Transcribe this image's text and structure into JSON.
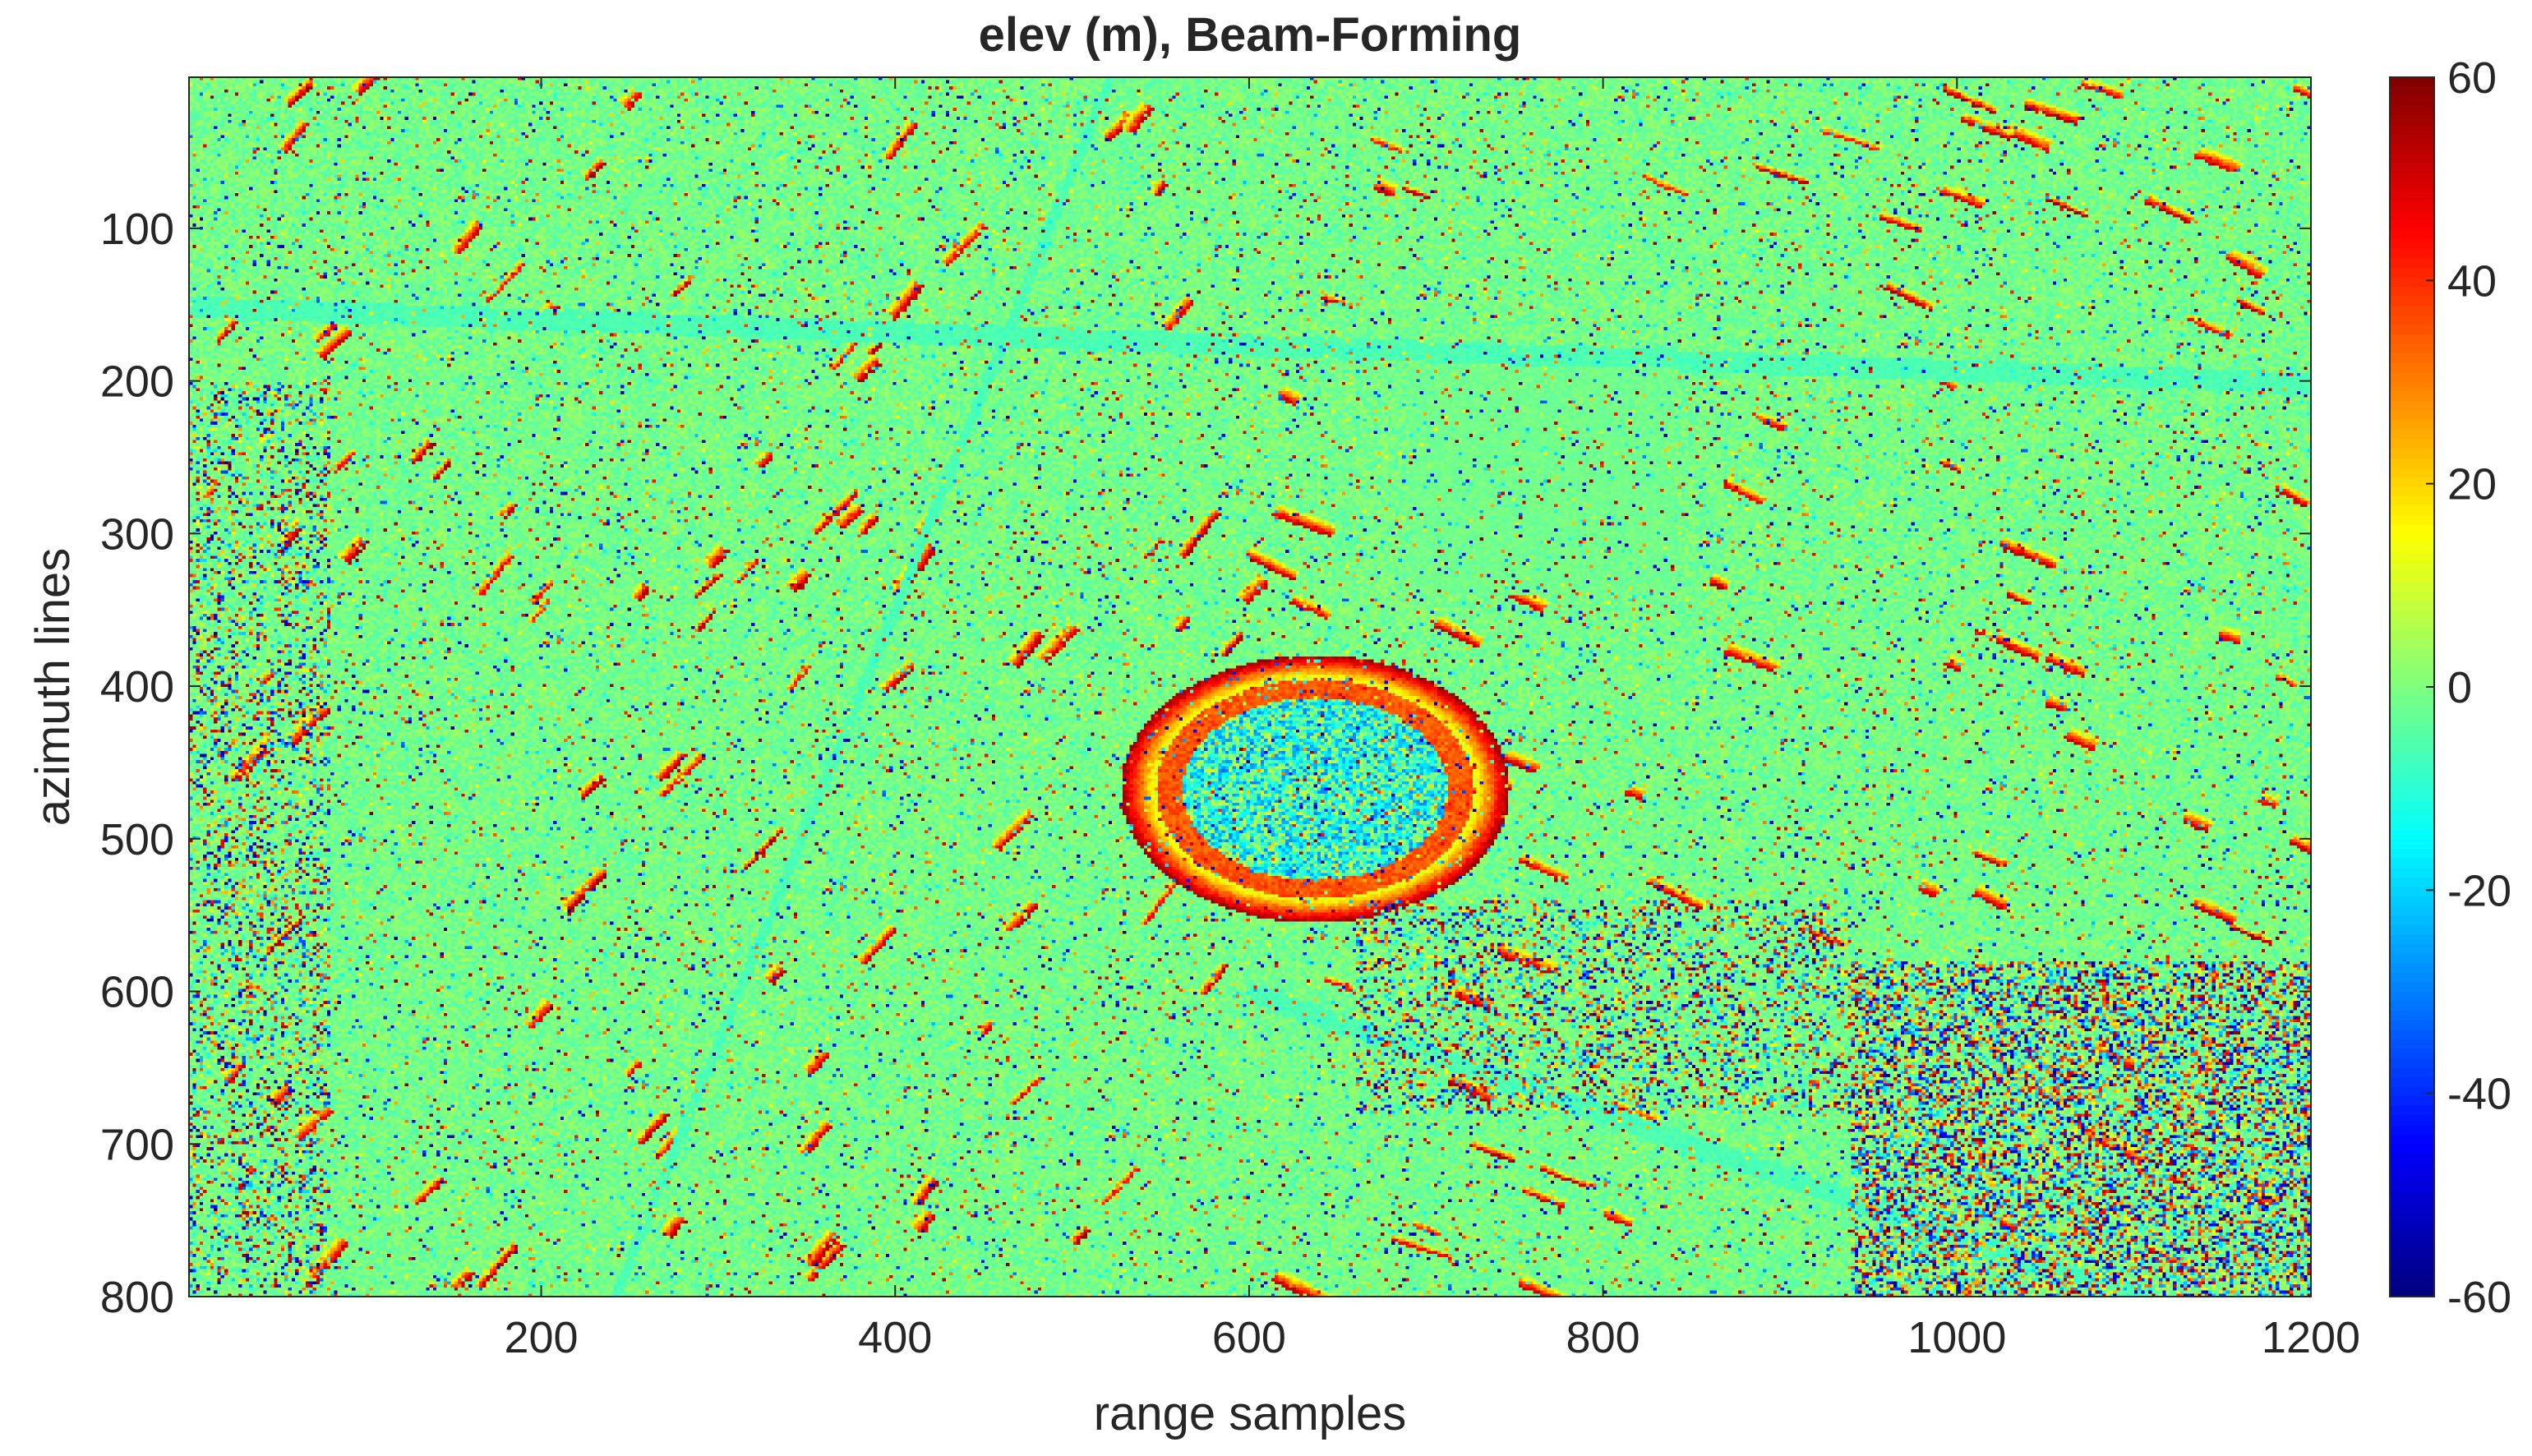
{
  "chart_data": {
    "type": "heatmap",
    "title": "elev (m), Beam-Forming",
    "xlabel": "range samples",
    "ylabel": "azimuth lines",
    "xlim": [
      1,
      1200
    ],
    "ylim": [
      1,
      800
    ],
    "y_axis_reversed": true,
    "xticks": [
      200,
      400,
      600,
      800,
      1000,
      1200
    ],
    "yticks": [
      100,
      200,
      300,
      400,
      500,
      600,
      700,
      800
    ],
    "colorbar": {
      "colormap": "jet",
      "clim": [
        -60,
        60
      ],
      "ticks": [
        -60,
        -40,
        -20,
        0,
        20,
        40,
        60
      ]
    },
    "description_values": {
      "background_elevation_m": -5,
      "building_top_elevation_m": 50,
      "stadium_center": [
        640,
        540
      ],
      "noise_regions": [
        "lower-right",
        "center-bottom",
        "left-edge"
      ]
    }
  }
}
